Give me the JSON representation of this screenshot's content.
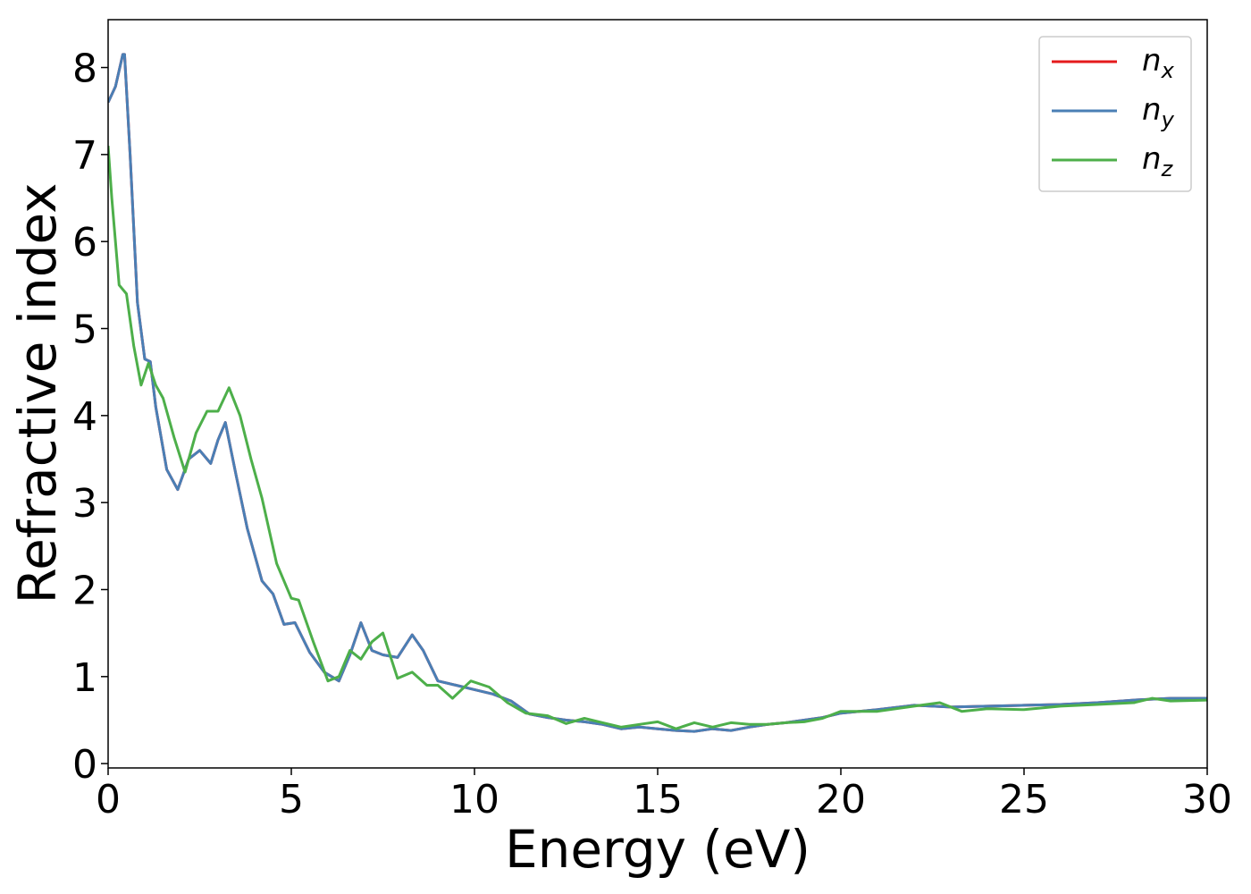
{
  "chart_data": {
    "type": "line",
    "title": "",
    "xlabel": "Energy (eV)",
    "ylabel": "Refractive index",
    "xlim": [
      0,
      30
    ],
    "ylim": [
      -0.05,
      8.55
    ],
    "xticks": [
      0,
      5,
      10,
      15,
      20,
      25,
      30
    ],
    "yticks": [
      0,
      1,
      2,
      3,
      4,
      5,
      6,
      7,
      8
    ],
    "grid": false,
    "legend": "top-right",
    "series": [
      {
        "name": "n",
        "subscript": "x",
        "color": "#e41a1c",
        "x": [
          0,
          0.2,
          0.4,
          0.45,
          0.6,
          0.8,
          1.0,
          1.15,
          1.3,
          1.6,
          1.9,
          2.2,
          2.5,
          2.8,
          3.0,
          3.2,
          3.5,
          3.8,
          4.2,
          4.5,
          4.8,
          5.1,
          5.5,
          5.9,
          6.3,
          6.6,
          6.9,
          7.2,
          7.5,
          7.9,
          8.3,
          8.6,
          9.0,
          9.5,
          10.0,
          10.5,
          11.0,
          11.5,
          12.0,
          12.5,
          13.0,
          13.5,
          14.0,
          14.5,
          15.0,
          15.5,
          16.0,
          16.5,
          17.0,
          17.5,
          18.0,
          18.5,
          19.0,
          19.5,
          20.0,
          21.0,
          22.0,
          23.0,
          24.0,
          25.0,
          26.0,
          27.0,
          28.0,
          29.0,
          30.0
        ],
        "values": [
          7.6,
          7.78,
          8.15,
          8.15,
          7.0,
          5.3,
          4.65,
          4.62,
          4.1,
          3.38,
          3.15,
          3.5,
          3.6,
          3.45,
          3.72,
          3.92,
          3.3,
          2.7,
          2.1,
          1.95,
          1.6,
          1.62,
          1.28,
          1.05,
          0.95,
          1.25,
          1.62,
          1.3,
          1.25,
          1.22,
          1.48,
          1.3,
          0.95,
          0.9,
          0.85,
          0.8,
          0.72,
          0.57,
          0.53,
          0.5,
          0.48,
          0.45,
          0.4,
          0.42,
          0.4,
          0.38,
          0.37,
          0.4,
          0.38,
          0.42,
          0.45,
          0.47,
          0.5,
          0.53,
          0.58,
          0.62,
          0.67,
          0.65,
          0.66,
          0.67,
          0.68,
          0.7,
          0.73,
          0.75,
          0.75
        ]
      },
      {
        "name": "n",
        "subscript": "y",
        "color": "#4a7fb5",
        "x": [
          0,
          0.2,
          0.4,
          0.45,
          0.6,
          0.8,
          1.0,
          1.15,
          1.3,
          1.6,
          1.9,
          2.2,
          2.5,
          2.8,
          3.0,
          3.2,
          3.5,
          3.8,
          4.2,
          4.5,
          4.8,
          5.1,
          5.5,
          5.9,
          6.3,
          6.6,
          6.9,
          7.2,
          7.5,
          7.9,
          8.3,
          8.6,
          9.0,
          9.5,
          10.0,
          10.5,
          11.0,
          11.5,
          12.0,
          12.5,
          13.0,
          13.5,
          14.0,
          14.5,
          15.0,
          15.5,
          16.0,
          16.5,
          17.0,
          17.5,
          18.0,
          18.5,
          19.0,
          19.5,
          20.0,
          21.0,
          22.0,
          23.0,
          24.0,
          25.0,
          26.0,
          27.0,
          28.0,
          29.0,
          30.0
        ],
        "values": [
          7.6,
          7.78,
          8.15,
          8.15,
          7.0,
          5.3,
          4.65,
          4.62,
          4.1,
          3.38,
          3.15,
          3.5,
          3.6,
          3.45,
          3.72,
          3.92,
          3.3,
          2.7,
          2.1,
          1.95,
          1.6,
          1.62,
          1.28,
          1.05,
          0.95,
          1.25,
          1.62,
          1.3,
          1.25,
          1.22,
          1.48,
          1.3,
          0.95,
          0.9,
          0.85,
          0.8,
          0.72,
          0.57,
          0.53,
          0.5,
          0.48,
          0.45,
          0.4,
          0.42,
          0.4,
          0.38,
          0.37,
          0.4,
          0.38,
          0.42,
          0.45,
          0.47,
          0.5,
          0.53,
          0.58,
          0.62,
          0.67,
          0.65,
          0.66,
          0.67,
          0.68,
          0.7,
          0.73,
          0.75,
          0.75
        ]
      },
      {
        "name": "n",
        "subscript": "z",
        "color": "#4daf4a",
        "x": [
          0,
          0.1,
          0.3,
          0.5,
          0.7,
          0.9,
          1.1,
          1.3,
          1.5,
          1.8,
          2.1,
          2.4,
          2.7,
          3.0,
          3.3,
          3.6,
          3.9,
          4.2,
          4.6,
          5.0,
          5.2,
          5.6,
          6.0,
          6.3,
          6.6,
          6.9,
          7.2,
          7.5,
          7.9,
          8.3,
          8.7,
          9.0,
          9.4,
          9.9,
          10.4,
          10.9,
          11.4,
          12.0,
          12.5,
          13.0,
          13.5,
          14.0,
          14.5,
          15.0,
          15.5,
          16.0,
          16.5,
          17.0,
          17.5,
          18.0,
          18.5,
          19.0,
          19.5,
          20.0,
          21.0,
          22.0,
          22.7,
          23.3,
          24.0,
          25.0,
          26.0,
          27.0,
          28.0,
          28.5,
          29.0,
          30.0
        ],
        "values": [
          7.1,
          6.5,
          5.5,
          5.4,
          4.8,
          4.35,
          4.6,
          4.35,
          4.2,
          3.75,
          3.35,
          3.8,
          4.05,
          4.05,
          4.32,
          4.0,
          3.5,
          3.05,
          2.3,
          1.9,
          1.88,
          1.4,
          0.95,
          1.0,
          1.3,
          1.2,
          1.4,
          1.5,
          0.98,
          1.05,
          0.9,
          0.9,
          0.75,
          0.95,
          0.88,
          0.7,
          0.58,
          0.55,
          0.46,
          0.52,
          0.47,
          0.42,
          0.45,
          0.48,
          0.4,
          0.47,
          0.42,
          0.47,
          0.45,
          0.45,
          0.47,
          0.48,
          0.52,
          0.6,
          0.6,
          0.66,
          0.7,
          0.6,
          0.63,
          0.62,
          0.66,
          0.68,
          0.7,
          0.75,
          0.72,
          0.73
        ]
      }
    ]
  }
}
